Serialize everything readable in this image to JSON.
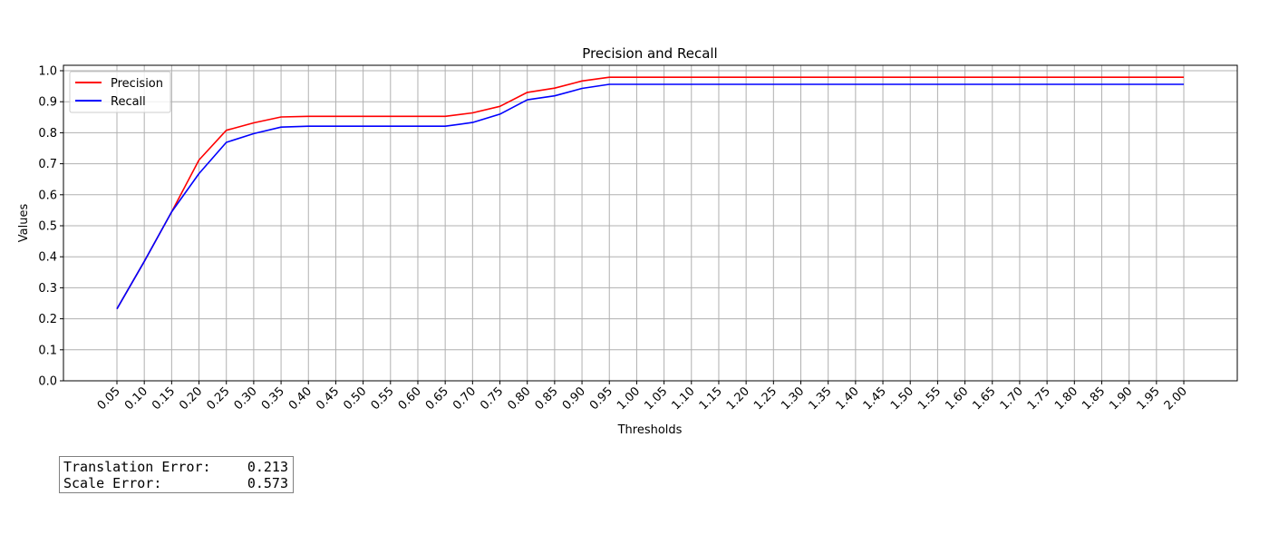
{
  "chart_data": {
    "type": "line",
    "title": "Precision and Recall",
    "xlabel": "Thresholds",
    "ylabel": "Values",
    "ylim": [
      0.0,
      1.0
    ],
    "yticks": [
      "0.0",
      "0.1",
      "0.2",
      "0.3",
      "0.4",
      "0.5",
      "0.6",
      "0.7",
      "0.8",
      "0.9",
      "1.0"
    ],
    "grid": true,
    "legend_position": "top-left",
    "x": [
      "0.05",
      "0.10",
      "0.15",
      "0.20",
      "0.25",
      "0.30",
      "0.35",
      "0.40",
      "0.45",
      "0.50",
      "0.55",
      "0.60",
      "0.65",
      "0.70",
      "0.75",
      "0.80",
      "0.85",
      "0.90",
      "0.95",
      "1.00",
      "1.05",
      "1.10",
      "1.15",
      "1.20",
      "1.25",
      "1.30",
      "1.35",
      "1.40",
      "1.45",
      "1.50",
      "1.55",
      "1.60",
      "1.65",
      "1.70",
      "1.75",
      "1.80",
      "1.85",
      "1.90",
      "1.95",
      "2.00"
    ],
    "series": [
      {
        "name": "Precision",
        "color": "#ff0000",
        "values": [
          0.232,
          0.385,
          0.545,
          0.712,
          0.808,
          0.832,
          0.851,
          0.853,
          0.853,
          0.853,
          0.853,
          0.853,
          0.853,
          0.864,
          0.885,
          0.93,
          0.944,
          0.967,
          0.979,
          0.979,
          0.979,
          0.979,
          0.979,
          0.979,
          0.979,
          0.979,
          0.979,
          0.979,
          0.979,
          0.979,
          0.979,
          0.979,
          0.979,
          0.979,
          0.979,
          0.979,
          0.979,
          0.979,
          0.979,
          0.979
        ]
      },
      {
        "name": "Recall",
        "color": "#0000ff",
        "values": [
          0.232,
          0.385,
          0.545,
          0.668,
          0.769,
          0.797,
          0.818,
          0.821,
          0.821,
          0.821,
          0.821,
          0.821,
          0.821,
          0.833,
          0.86,
          0.906,
          0.919,
          0.943,
          0.956,
          0.956,
          0.956,
          0.956,
          0.956,
          0.956,
          0.956,
          0.956,
          0.956,
          0.956,
          0.956,
          0.956,
          0.956,
          0.956,
          0.956,
          0.956,
          0.956,
          0.956,
          0.956,
          0.956,
          0.956,
          0.956
        ]
      }
    ]
  },
  "errors": {
    "translation_label": "Translation Error:",
    "translation_value": "0.213",
    "scale_label": "Scale Error:",
    "scale_value": "0.573"
  }
}
